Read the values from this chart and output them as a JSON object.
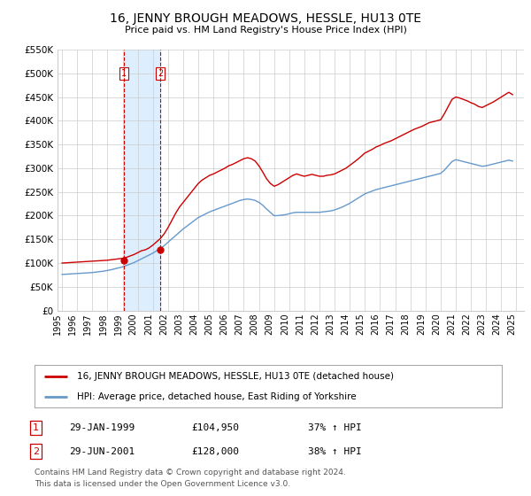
{
  "title": "16, JENNY BROUGH MEADOWS, HESSLE, HU13 0TE",
  "subtitle": "Price paid vs. HM Land Registry's House Price Index (HPI)",
  "legend_line1": "16, JENNY BROUGH MEADOWS, HESSLE, HU13 0TE (detached house)",
  "legend_line2": "HPI: Average price, detached house, East Riding of Yorkshire",
  "footer1": "Contains HM Land Registry data © Crown copyright and database right 2024.",
  "footer2": "This data is licensed under the Open Government Licence v3.0.",
  "sale1_label": "1",
  "sale1_date": "29-JAN-1999",
  "sale1_price": "£104,950",
  "sale1_hpi": "37% ↑ HPI",
  "sale2_label": "2",
  "sale2_date": "29-JUN-2001",
  "sale2_price": "£128,000",
  "sale2_hpi": "38% ↑ HPI",
  "sale1_x": 1999.08,
  "sale1_y": 104950,
  "sale2_x": 2001.5,
  "sale2_y": 128000,
  "red_color": "#cc0000",
  "blue_color": "#6699cc",
  "shade_color": "#ddeeff",
  "grid_color": "#cccccc",
  "background_color": "#ffffff",
  "ylim": [
    0,
    550000
  ],
  "xlim_start": 1994.7,
  "xlim_end": 2025.5,
  "yticks": [
    0,
    50000,
    100000,
    150000,
    200000,
    250000,
    300000,
    350000,
    400000,
    450000,
    500000,
    550000
  ],
  "ytick_labels": [
    "£0",
    "£50K",
    "£100K",
    "£150K",
    "£200K",
    "£250K",
    "£300K",
    "£350K",
    "£400K",
    "£450K",
    "£500K",
    "£550K"
  ],
  "xticks": [
    1995,
    1996,
    1997,
    1998,
    1999,
    2000,
    2001,
    2002,
    2003,
    2004,
    2005,
    2006,
    2007,
    2008,
    2009,
    2010,
    2011,
    2012,
    2013,
    2014,
    2015,
    2016,
    2017,
    2018,
    2019,
    2020,
    2021,
    2022,
    2023,
    2024,
    2025
  ],
  "red_line_x": [
    1995.0,
    1995.25,
    1995.5,
    1995.75,
    1996.0,
    1996.25,
    1996.5,
    1996.75,
    1997.0,
    1997.25,
    1997.5,
    1997.75,
    1998.0,
    1998.25,
    1998.5,
    1998.75,
    1999.0,
    1999.25,
    1999.5,
    1999.75,
    2000.0,
    2000.25,
    2000.5,
    2000.75,
    2001.0,
    2001.25,
    2001.5,
    2001.75,
    2002.0,
    2002.25,
    2002.5,
    2002.75,
    2003.0,
    2003.25,
    2003.5,
    2003.75,
    2004.0,
    2004.25,
    2004.5,
    2004.75,
    2005.0,
    2005.25,
    2005.5,
    2005.75,
    2006.0,
    2006.25,
    2006.5,
    2006.75,
    2007.0,
    2007.25,
    2007.5,
    2007.75,
    2008.0,
    2008.25,
    2008.5,
    2008.75,
    2009.0,
    2009.25,
    2009.5,
    2009.75,
    2010.0,
    2010.25,
    2010.5,
    2010.75,
    2011.0,
    2011.25,
    2011.5,
    2011.75,
    2012.0,
    2012.25,
    2012.5,
    2012.75,
    2013.0,
    2013.25,
    2013.5,
    2013.75,
    2014.0,
    2014.25,
    2014.5,
    2014.75,
    2015.0,
    2015.25,
    2015.5,
    2015.75,
    2016.0,
    2016.25,
    2016.5,
    2016.75,
    2017.0,
    2017.25,
    2017.5,
    2017.75,
    2018.0,
    2018.25,
    2018.5,
    2018.75,
    2019.0,
    2019.25,
    2019.5,
    2019.75,
    2020.0,
    2020.25,
    2020.5,
    2020.75,
    2021.0,
    2021.25,
    2021.5,
    2021.75,
    2022.0,
    2022.25,
    2022.5,
    2022.75,
    2023.0,
    2023.25,
    2023.5,
    2023.75,
    2024.0,
    2024.25,
    2024.5,
    2024.75
  ],
  "red_line_y": [
    100000,
    100500,
    101000,
    101500,
    102000,
    102500,
    103000,
    103500,
    104000,
    104500,
    104950,
    105500,
    106000,
    107000,
    108000,
    109000,
    110000,
    112000,
    115000,
    118000,
    122000,
    126000,
    128000,
    132000,
    138000,
    145000,
    152000,
    162000,
    175000,
    190000,
    205000,
    218000,
    228000,
    238000,
    248000,
    258000,
    268000,
    275000,
    280000,
    285000,
    288000,
    292000,
    296000,
    300000,
    305000,
    308000,
    312000,
    316000,
    320000,
    322000,
    320000,
    315000,
    305000,
    292000,
    278000,
    268000,
    262000,
    265000,
    270000,
    275000,
    280000,
    285000,
    288000,
    285000,
    283000,
    285000,
    287000,
    285000,
    283000,
    283000,
    285000,
    286000,
    288000,
    292000,
    296000,
    300000,
    306000,
    312000,
    318000,
    325000,
    332000,
    336000,
    340000,
    345000,
    348000,
    352000,
    355000,
    358000,
    362000,
    366000,
    370000,
    374000,
    378000,
    382000,
    385000,
    388000,
    392000,
    396000,
    398000,
    400000,
    402000,
    415000,
    430000,
    445000,
    450000,
    448000,
    445000,
    442000,
    438000,
    435000,
    430000,
    428000,
    432000,
    436000,
    440000,
    445000,
    450000,
    455000,
    460000,
    455000
  ],
  "blue_line_x": [
    1995.0,
    1995.25,
    1995.5,
    1995.75,
    1996.0,
    1996.25,
    1996.5,
    1996.75,
    1997.0,
    1997.25,
    1997.5,
    1997.75,
    1998.0,
    1998.25,
    1998.5,
    1998.75,
    1999.0,
    1999.25,
    1999.5,
    1999.75,
    2000.0,
    2000.25,
    2000.5,
    2000.75,
    2001.0,
    2001.25,
    2001.5,
    2001.75,
    2002.0,
    2002.25,
    2002.5,
    2002.75,
    2003.0,
    2003.25,
    2003.5,
    2003.75,
    2004.0,
    2004.25,
    2004.5,
    2004.75,
    2005.0,
    2005.25,
    2005.5,
    2005.75,
    2006.0,
    2006.25,
    2006.5,
    2006.75,
    2007.0,
    2007.25,
    2007.5,
    2007.75,
    2008.0,
    2008.25,
    2008.5,
    2008.75,
    2009.0,
    2009.25,
    2009.5,
    2009.75,
    2010.0,
    2010.25,
    2010.5,
    2010.75,
    2011.0,
    2011.25,
    2011.5,
    2011.75,
    2012.0,
    2012.25,
    2012.5,
    2012.75,
    2013.0,
    2013.25,
    2013.5,
    2013.75,
    2014.0,
    2014.25,
    2014.5,
    2014.75,
    2015.0,
    2015.25,
    2015.5,
    2015.75,
    2016.0,
    2016.25,
    2016.5,
    2016.75,
    2017.0,
    2017.25,
    2017.5,
    2017.75,
    2018.0,
    2018.25,
    2018.5,
    2018.75,
    2019.0,
    2019.25,
    2019.5,
    2019.75,
    2020.0,
    2020.25,
    2020.5,
    2020.75,
    2021.0,
    2021.25,
    2021.5,
    2021.75,
    2022.0,
    2022.25,
    2022.5,
    2022.75,
    2023.0,
    2023.25,
    2023.5,
    2023.75,
    2024.0,
    2024.25,
    2024.5,
    2024.75
  ],
  "blue_line_y": [
    76000,
    76500,
    77000,
    77500,
    78000,
    78500,
    79000,
    79500,
    80000,
    81000,
    82000,
    83000,
    84500,
    86000,
    88000,
    90000,
    92000,
    95000,
    98000,
    101000,
    105000,
    109000,
    113000,
    117000,
    121000,
    126000,
    131000,
    137000,
    144000,
    151000,
    158000,
    165000,
    172000,
    178000,
    184000,
    190000,
    196000,
    200000,
    204000,
    208000,
    211000,
    214000,
    217000,
    220000,
    223000,
    226000,
    229000,
    232000,
    234000,
    235000,
    234000,
    232000,
    228000,
    222000,
    214000,
    207000,
    200000,
    200000,
    201000,
    202000,
    204000,
    206000,
    207000,
    207000,
    207000,
    207000,
    207000,
    207000,
    207000,
    208000,
    209000,
    210000,
    212000,
    215000,
    218000,
    222000,
    226000,
    231000,
    236000,
    241000,
    246000,
    249000,
    252000,
    255000,
    257000,
    259000,
    261000,
    263000,
    265000,
    267000,
    269000,
    271000,
    273000,
    275000,
    277000,
    279000,
    281000,
    283000,
    285000,
    287000,
    289000,
    296000,
    305000,
    314000,
    318000,
    316000,
    314000,
    312000,
    310000,
    308000,
    306000,
    304000,
    305000,
    307000,
    309000,
    311000,
    313000,
    315000,
    317000,
    315000
  ]
}
